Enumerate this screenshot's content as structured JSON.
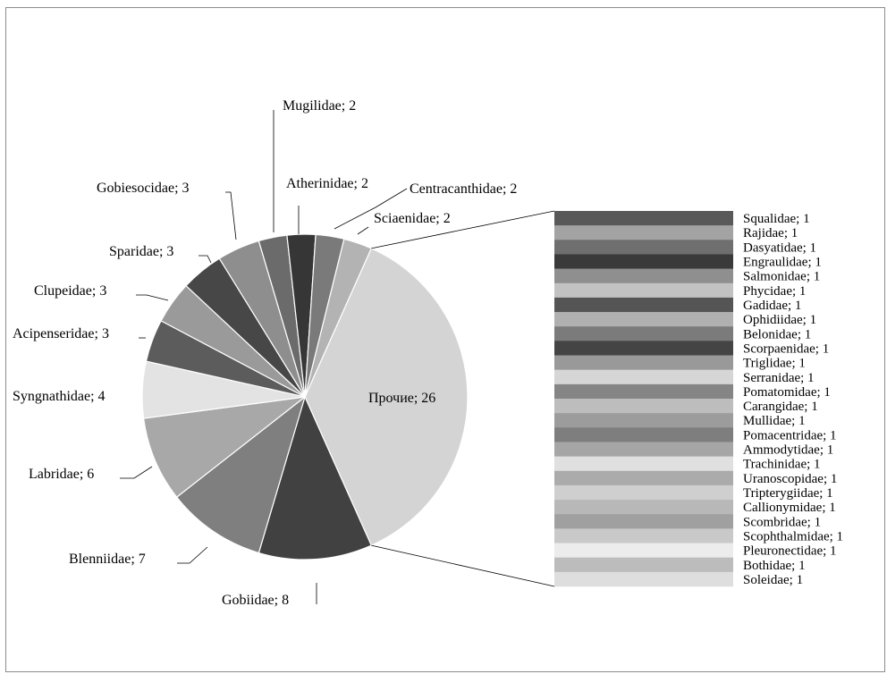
{
  "chart_data": {
    "type": "bar-of-pie",
    "pie": [
      {
        "label": "Прочие; 26",
        "name": "Прочие",
        "value": 26,
        "color": "#d4d4d4"
      },
      {
        "label": "Gobiidae; 8",
        "name": "Gobiidae",
        "value": 8,
        "color": "#414141"
      },
      {
        "label": "Blenniidae; 7",
        "name": "Blenniidae",
        "value": 7,
        "color": "#7f7f7f"
      },
      {
        "label": "Labridae; 6",
        "name": "Labridae",
        "value": 6,
        "color": "#a8a8a8"
      },
      {
        "label": "Syngnathidae;  4",
        "name": "Syngnathidae",
        "value": 4,
        "color": "#e3e3e3"
      },
      {
        "label": "Acipenseridae; 3",
        "name": "Acipenseridae",
        "value": 3,
        "color": "#5c5c5c"
      },
      {
        "label": "Clupeidae; 3",
        "name": "Clupeidae",
        "value": 3,
        "color": "#9a9a9a"
      },
      {
        "label": "Sparidae; 3",
        "name": "Sparidae",
        "value": 3,
        "color": "#474747"
      },
      {
        "label": "Gobiesocidae; 3",
        "name": "Gobiesocidae",
        "value": 3,
        "color": "#8e8e8e"
      },
      {
        "label": "Mugilidae; 2",
        "name": "Mugilidae",
        "value": 2,
        "color": "#6b6b6b"
      },
      {
        "label": "Atherinidae; 2",
        "name": "Atherinidae",
        "value": 2,
        "color": "#363636"
      },
      {
        "label": "Centracanthidae; 2",
        "name": "Centracanthidae",
        "value": 2,
        "color": "#7a7a7a"
      },
      {
        "label": "Sciaenidae; 2",
        "name": "Sciaenidae",
        "value": 2,
        "color": "#b3b3b3"
      }
    ],
    "others": [
      {
        "label": "Squalidae; 1",
        "value": 1,
        "color": "#595959"
      },
      {
        "label": "Rajidae; 1",
        "value": 1,
        "color": "#a3a3a3"
      },
      {
        "label": "Dasyatidae;  1",
        "value": 1,
        "color": "#6f6f6f"
      },
      {
        "label": "Engraulidae; 1",
        "value": 1,
        "color": "#3a3a3a"
      },
      {
        "label": "Salmonidae; 1",
        "value": 1,
        "color": "#8f8f8f"
      },
      {
        "label": "Phycidae; 1",
        "value": 1,
        "color": "#c2c2c2"
      },
      {
        "label": "Gadidae; 1",
        "value": 1,
        "color": "#555555"
      },
      {
        "label": "Ophidiidae; 1",
        "value": 1,
        "color": "#b0b0b0"
      },
      {
        "label": "Belonidae; 1",
        "value": 1,
        "color": "#7b7b7b"
      },
      {
        "label": "Scorpaenidae; 1",
        "value": 1,
        "color": "#444444"
      },
      {
        "label": "Triglidae; 1",
        "value": 1,
        "color": "#999999"
      },
      {
        "label": "Serranidae; 1",
        "value": 1,
        "color": "#d6d6d6"
      },
      {
        "label": "Pomatomidae; 1",
        "value": 1,
        "color": "#858585"
      },
      {
        "label": "Carangidae;  1",
        "value": 1,
        "color": "#bdbdbd"
      },
      {
        "label": "Mullidae; 1",
        "value": 1,
        "color": "#9c9c9c"
      },
      {
        "label": "Pomacentridae; 1",
        "value": 1,
        "color": "#7e7e7e"
      },
      {
        "label": "Ammodytidae; 1",
        "value": 1,
        "color": "#a6a6a6"
      },
      {
        "label": "Trachinidae; 1",
        "value": 1,
        "color": "#e0e0e0"
      },
      {
        "label": "Uranoscopidae; 1",
        "value": 1,
        "color": "#ababab"
      },
      {
        "label": "Tripterygiidae;  1",
        "value": 1,
        "color": "#cfcfcf"
      },
      {
        "label": "Callionymidae;  1",
        "value": 1,
        "color": "#b8b8b8"
      },
      {
        "label": "Scombridae;  1",
        "value": 1,
        "color": "#a0a0a0"
      },
      {
        "label": "Scophthalmidae; 1",
        "value": 1,
        "color": "#c9c9c9"
      },
      {
        "label": "Pleuronectidae; 1",
        "value": 1,
        "color": "#ececec"
      },
      {
        "label": "Bothidae; 1",
        "value": 1,
        "color": "#bcbcbc"
      },
      {
        "label": "Soleidae; 1",
        "value": 1,
        "color": "#dedede"
      }
    ]
  }
}
